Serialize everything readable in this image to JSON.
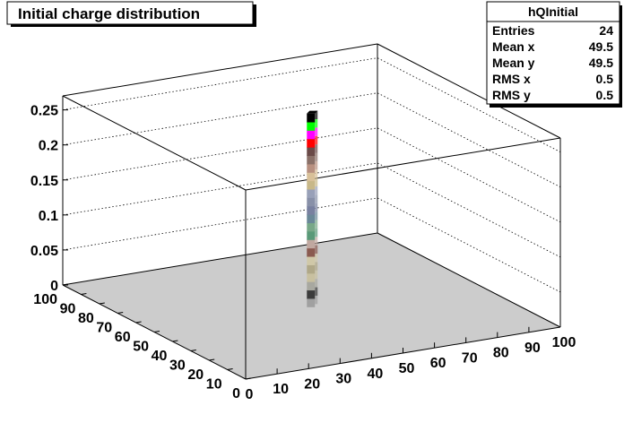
{
  "chart_data": {
    "type": "lego3d",
    "title": "Initial charge distribution",
    "xlabel": "",
    "ylabel": "",
    "zlabel": "",
    "xlim": [
      0,
      100
    ],
    "ylim": [
      0,
      100
    ],
    "zlim": [
      0,
      0.27
    ],
    "x_ticks": [
      "0",
      "10",
      "20",
      "30",
      "40",
      "50",
      "60",
      "70",
      "80",
      "90",
      "100"
    ],
    "y_ticks": [
      "0",
      "10",
      "20",
      "30",
      "40",
      "50",
      "60",
      "70",
      "80",
      "90",
      "100"
    ],
    "z_ticks": [
      "0",
      "0.05",
      "0.1",
      "0.15",
      "0.2",
      "0.25"
    ],
    "grid": true,
    "stack": {
      "x": 49.5,
      "y": 49.5,
      "segments": [
        {
          "height": 0.012,
          "color": "#a0a0a0"
        },
        {
          "height": 0.012,
          "color": "#3c3c3c"
        },
        {
          "height": 0.012,
          "color": "#a8a8a0"
        },
        {
          "height": 0.012,
          "color": "#c8c0a0"
        },
        {
          "height": 0.012,
          "color": "#b0a888"
        },
        {
          "height": 0.012,
          "color": "#d0c8a8"
        },
        {
          "height": 0.012,
          "color": "#8a5a50"
        },
        {
          "height": 0.012,
          "color": "#c0a8a0"
        },
        {
          "height": 0.012,
          "color": "#5a9a78"
        },
        {
          "height": 0.012,
          "color": "#78a888"
        },
        {
          "height": 0.012,
          "color": "#6a8898"
        },
        {
          "height": 0.012,
          "color": "#7880a0"
        },
        {
          "height": 0.012,
          "color": "#8890a8"
        },
        {
          "height": 0.012,
          "color": "#98a0b8"
        },
        {
          "height": 0.012,
          "color": "#c8b888"
        },
        {
          "height": 0.012,
          "color": "#d8c098"
        },
        {
          "height": 0.012,
          "color": "#b89080"
        },
        {
          "height": 0.012,
          "color": "#8a7068"
        },
        {
          "height": 0.012,
          "color": "#6a4a48"
        },
        {
          "height": 0.012,
          "color": "#ff0000"
        },
        {
          "height": 0.012,
          "color": "#ff00ff"
        },
        {
          "height": 0.012,
          "color": "#00ff00"
        },
        {
          "height": 0.012,
          "color": "#000000"
        }
      ]
    },
    "floor_color": "#cccccc",
    "stats": {
      "name": "hQInitial",
      "rows": [
        {
          "label": "Entries",
          "value": "24"
        },
        {
          "label": "Mean x",
          "value": "49.5"
        },
        {
          "label": "Mean y",
          "value": "49.5"
        },
        {
          "label": "RMS x",
          "value": "0.5"
        },
        {
          "label": "RMS y",
          "value": "0.5"
        }
      ]
    }
  }
}
